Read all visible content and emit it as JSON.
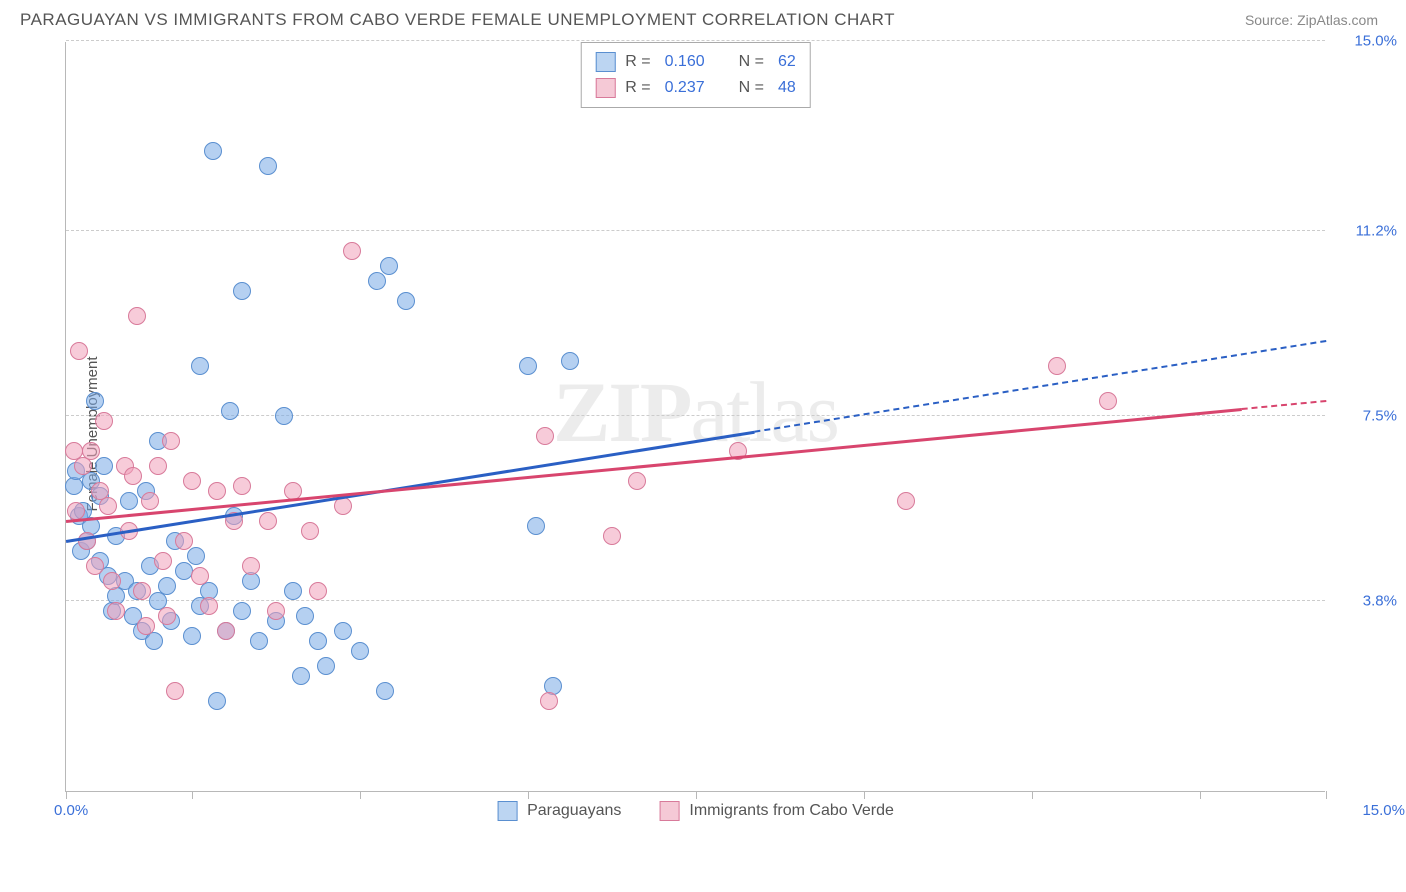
{
  "title": "PARAGUAYAN VS IMMIGRANTS FROM CABO VERDE FEMALE UNEMPLOYMENT CORRELATION CHART",
  "source": "Source: ZipAtlas.com",
  "ylabel": "Female Unemployment",
  "watermark_bold": "ZIP",
  "watermark_rest": "atlas",
  "chart": {
    "type": "scatter",
    "xlim": [
      0,
      15
    ],
    "ylim": [
      0,
      15
    ],
    "x_start_label": "0.0%",
    "x_end_label": "15.0%",
    "x_tick_positions": [
      0,
      1.5,
      3.5,
      5.5,
      7.5,
      9.5,
      11.5,
      13.5,
      15
    ],
    "y_gridlines": [
      {
        "value": 3.8,
        "label": "3.8%"
      },
      {
        "value": 7.5,
        "label": "7.5%"
      },
      {
        "value": 11.2,
        "label": "11.2%"
      },
      {
        "value": 15.0,
        "label": "15.0%"
      }
    ],
    "axis_label_color": "#3a6fd8",
    "grid_color": "#cccccc",
    "axis_color": "#b8b8b8",
    "background": "#ffffff"
  },
  "series": [
    {
      "key": "paraguayans",
      "label": "Paraguayans",
      "R": "0.160",
      "N": "62",
      "point_fill": "rgba(120,170,230,0.55)",
      "point_stroke": "#5a8fd0",
      "line_color": "#2a5fc4",
      "swatch_fill": "#bcd5f2",
      "swatch_border": "#5a8fd0",
      "trend": {
        "x0": 0,
        "y0": 5.0,
        "x1": 15,
        "y1": 9.0,
        "solid_to_x": 8.2
      },
      "points": [
        [
          0.1,
          6.1
        ],
        [
          0.12,
          6.4
        ],
        [
          0.15,
          5.5
        ],
        [
          0.18,
          4.8
        ],
        [
          0.2,
          5.6
        ],
        [
          0.25,
          5.0
        ],
        [
          0.3,
          6.2
        ],
        [
          0.3,
          5.3
        ],
        [
          0.35,
          7.8
        ],
        [
          0.4,
          4.6
        ],
        [
          0.4,
          5.9
        ],
        [
          0.45,
          6.5
        ],
        [
          0.5,
          4.3
        ],
        [
          0.55,
          3.6
        ],
        [
          0.6,
          5.1
        ],
        [
          0.6,
          3.9
        ],
        [
          0.7,
          4.2
        ],
        [
          0.75,
          5.8
        ],
        [
          0.8,
          3.5
        ],
        [
          0.85,
          4.0
        ],
        [
          0.9,
          3.2
        ],
        [
          0.95,
          6.0
        ],
        [
          1.0,
          4.5
        ],
        [
          1.05,
          3.0
        ],
        [
          1.1,
          7.0
        ],
        [
          1.1,
          3.8
        ],
        [
          1.2,
          4.1
        ],
        [
          1.25,
          3.4
        ],
        [
          1.3,
          5.0
        ],
        [
          1.4,
          4.4
        ],
        [
          1.5,
          3.1
        ],
        [
          1.55,
          4.7
        ],
        [
          1.6,
          8.5
        ],
        [
          1.6,
          3.7
        ],
        [
          1.7,
          4.0
        ],
        [
          1.75,
          12.8
        ],
        [
          1.8,
          1.8
        ],
        [
          1.9,
          3.2
        ],
        [
          1.95,
          7.6
        ],
        [
          2.0,
          5.5
        ],
        [
          2.1,
          10.0
        ],
        [
          2.1,
          3.6
        ],
        [
          2.2,
          4.2
        ],
        [
          2.3,
          3.0
        ],
        [
          2.4,
          12.5
        ],
        [
          2.5,
          3.4
        ],
        [
          2.6,
          7.5
        ],
        [
          2.7,
          4.0
        ],
        [
          2.8,
          2.3
        ],
        [
          2.85,
          3.5
        ],
        [
          3.0,
          3.0
        ],
        [
          3.1,
          2.5
        ],
        [
          3.3,
          3.2
        ],
        [
          3.5,
          2.8
        ],
        [
          3.7,
          10.2
        ],
        [
          3.8,
          2.0
        ],
        [
          3.85,
          10.5
        ],
        [
          4.05,
          9.8
        ],
        [
          5.5,
          8.5
        ],
        [
          5.6,
          5.3
        ],
        [
          5.8,
          2.1
        ],
        [
          6.0,
          8.6
        ]
      ]
    },
    {
      "key": "cabo_verde",
      "label": "Immigrants from Cabo Verde",
      "R": "0.237",
      "N": "48",
      "point_fill": "rgba(240,160,185,0.55)",
      "point_stroke": "#d87a9a",
      "line_color": "#d8456e",
      "swatch_fill": "#f5c9d6",
      "swatch_border": "#d87a9a",
      "trend": {
        "x0": 0,
        "y0": 5.4,
        "x1": 15,
        "y1": 7.8,
        "solid_to_x": 14.0
      },
      "points": [
        [
          0.1,
          6.8
        ],
        [
          0.12,
          5.6
        ],
        [
          0.15,
          8.8
        ],
        [
          0.2,
          6.5
        ],
        [
          0.25,
          5.0
        ],
        [
          0.3,
          6.8
        ],
        [
          0.35,
          4.5
        ],
        [
          0.4,
          6.0
        ],
        [
          0.45,
          7.4
        ],
        [
          0.5,
          5.7
        ],
        [
          0.55,
          4.2
        ],
        [
          0.6,
          3.6
        ],
        [
          0.7,
          6.5
        ],
        [
          0.75,
          5.2
        ],
        [
          0.8,
          6.3
        ],
        [
          0.85,
          9.5
        ],
        [
          0.9,
          4.0
        ],
        [
          0.95,
          3.3
        ],
        [
          1.0,
          5.8
        ],
        [
          1.1,
          6.5
        ],
        [
          1.15,
          4.6
        ],
        [
          1.2,
          3.5
        ],
        [
          1.25,
          7.0
        ],
        [
          1.3,
          2.0
        ],
        [
          1.4,
          5.0
        ],
        [
          1.5,
          6.2
        ],
        [
          1.6,
          4.3
        ],
        [
          1.7,
          3.7
        ],
        [
          1.8,
          6.0
        ],
        [
          1.9,
          3.2
        ],
        [
          2.0,
          5.4
        ],
        [
          2.1,
          6.1
        ],
        [
          2.2,
          4.5
        ],
        [
          2.4,
          5.4
        ],
        [
          2.5,
          3.6
        ],
        [
          2.7,
          6.0
        ],
        [
          2.9,
          5.2
        ],
        [
          3.0,
          4.0
        ],
        [
          3.3,
          5.7
        ],
        [
          3.4,
          10.8
        ],
        [
          5.7,
          7.1
        ],
        [
          5.75,
          1.8
        ],
        [
          6.5,
          5.1
        ],
        [
          6.8,
          6.2
        ],
        [
          8.0,
          6.8
        ],
        [
          10.0,
          5.8
        ],
        [
          11.8,
          8.5
        ],
        [
          12.4,
          7.8
        ]
      ]
    }
  ],
  "legend_top": {
    "R_prefix": "R =",
    "N_prefix": "N ="
  }
}
